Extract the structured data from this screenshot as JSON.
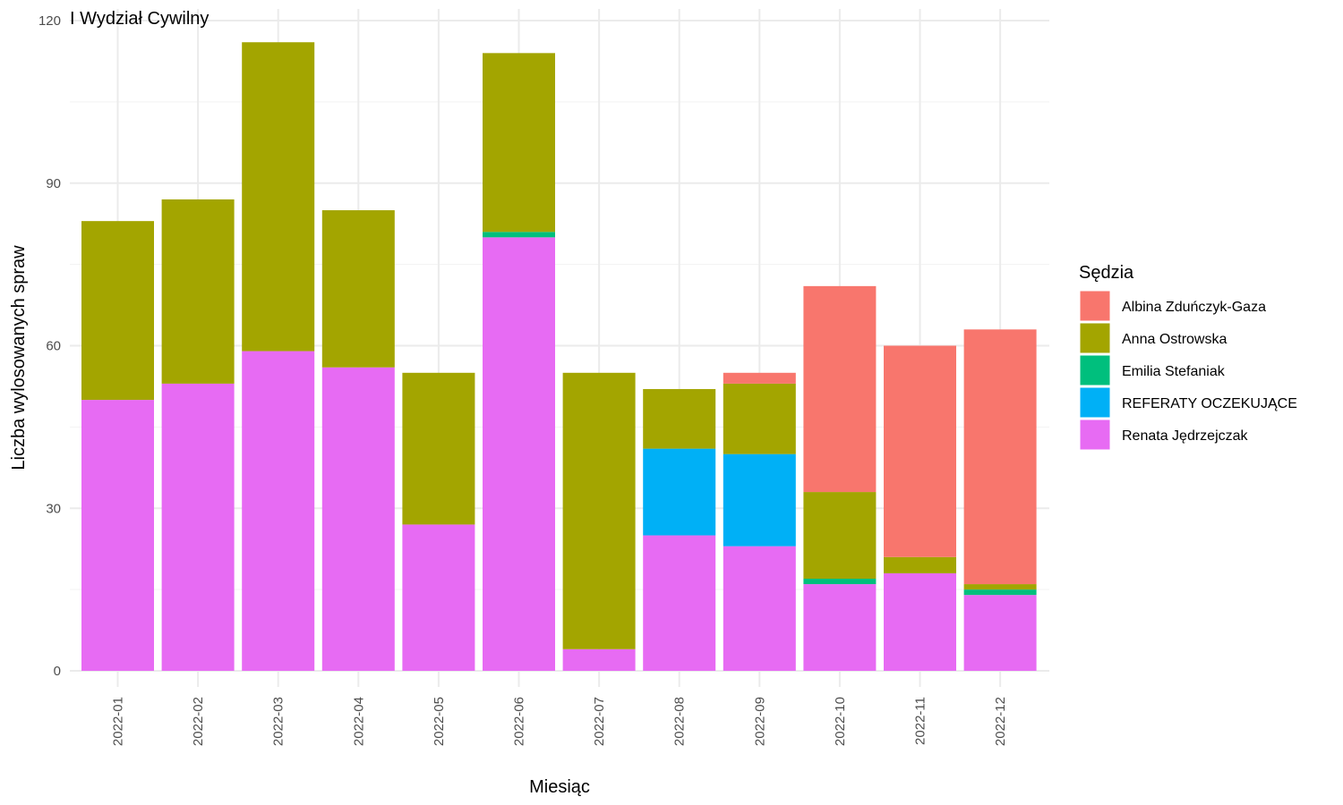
{
  "chart_data": {
    "type": "bar",
    "stacked": true,
    "title": "I Wydział Cywilny",
    "xlabel": "Miesiąc",
    "ylabel": "Liczba wylosowanych spraw",
    "ylim": [
      0,
      120
    ],
    "yticks": [
      0,
      30,
      60,
      90,
      120
    ],
    "grid": true,
    "legend_position": "right",
    "legend_title": "Sędzia",
    "categories": [
      "2022-01",
      "2022-02",
      "2022-03",
      "2022-04",
      "2022-05",
      "2022-06",
      "2022-07",
      "2022-08",
      "2022-09",
      "2022-10",
      "2022-11",
      "2022-12"
    ],
    "series": [
      {
        "name": "Renata Jędrzejczak",
        "color": "#E76BF3",
        "values": [
          50,
          53,
          59,
          56,
          27,
          80,
          4,
          25,
          23,
          16,
          18,
          14
        ]
      },
      {
        "name": "REFERATY OCZEKUJĄCE",
        "color": "#00B0F6",
        "values": [
          0,
          0,
          0,
          0,
          0,
          0,
          0,
          16,
          17,
          0,
          0,
          0
        ]
      },
      {
        "name": "Emilia Stefaniak",
        "color": "#00BF7D",
        "values": [
          0,
          0,
          0,
          0,
          0,
          1,
          0,
          0,
          0,
          1,
          0,
          1
        ]
      },
      {
        "name": "Anna Ostrowska",
        "color": "#A3A500",
        "values": [
          33,
          34,
          57,
          29,
          28,
          33,
          51,
          11,
          13,
          16,
          3,
          1
        ]
      },
      {
        "name": "Albina Zduńczyk-Gaza",
        "color": "#F8766D",
        "values": [
          0,
          0,
          0,
          0,
          0,
          0,
          0,
          0,
          2,
          38,
          39,
          47
        ]
      }
    ],
    "legend_order": [
      "Albina Zduńczyk-Gaza",
      "Anna Ostrowska",
      "Emilia Stefaniak",
      "REFERATY OCZEKUJĄCE",
      "Renata Jędrzejczak"
    ]
  }
}
